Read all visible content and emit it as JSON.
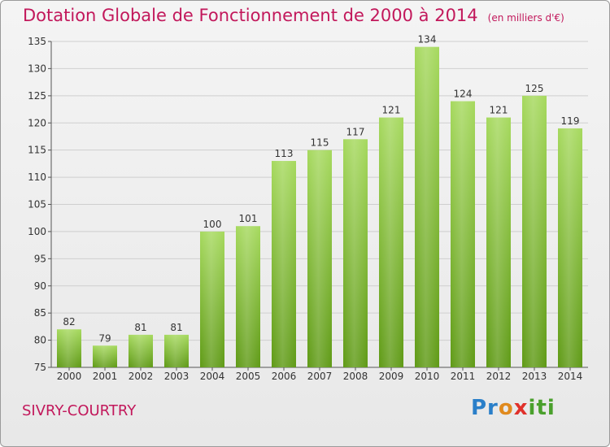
{
  "title": "Dotation Globale de Fonctionnement de 2000 à 2014",
  "unit_note": "(en milliers d'€)",
  "commune": "SIVRY-COURTRY",
  "logo": "Proxiti",
  "colors": {
    "title": "#c2185b",
    "bar_light": "#a6d95e",
    "bar_dark": "#5f9a16",
    "grid": "#cfcfcf"
  },
  "chart_data": {
    "type": "bar",
    "title": "Dotation Globale de Fonctionnement de 2000 à 2014",
    "xlabel": "",
    "ylabel": "",
    "categories": [
      "2000",
      "2001",
      "2002",
      "2003",
      "2004",
      "2005",
      "2006",
      "2007",
      "2008",
      "2009",
      "2010",
      "2011",
      "2012",
      "2013",
      "2014"
    ],
    "values": [
      82,
      79,
      81,
      81,
      100,
      101,
      113,
      115,
      117,
      121,
      134,
      124,
      121,
      125,
      119
    ],
    "ylim": [
      75,
      135
    ],
    "yticks": [
      75,
      80,
      85,
      90,
      95,
      100,
      105,
      110,
      115,
      120,
      125,
      130,
      135
    ],
    "grid": true,
    "legend": "none"
  }
}
